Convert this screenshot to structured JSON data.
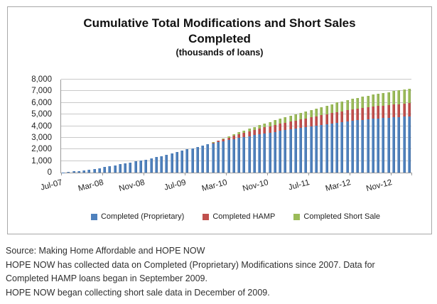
{
  "chart_data": {
    "type": "bar",
    "stacked": true,
    "title": "Cumulative Total Modifications and Short Sales Completed",
    "title_lines": [
      "Cumulative Total Modifications and Short Sales",
      "Completed"
    ],
    "subtitle": "(thousands of loans)",
    "ylim": [
      0,
      8000
    ],
    "ytick_interval": 1000,
    "ytick_labels": [
      "0",
      "1,000",
      "2,000",
      "3,000",
      "4,000",
      "5,000",
      "6,000",
      "7,000",
      "8,000"
    ],
    "xtick_interval": 8,
    "grid": true,
    "legend_position": "bottom",
    "x": [
      "Jul-07",
      "Aug-07",
      "Sep-07",
      "Oct-07",
      "Nov-07",
      "Dec-07",
      "Jan-08",
      "Feb-08",
      "Mar-08",
      "Apr-08",
      "May-08",
      "Jun-08",
      "Jul-08",
      "Aug-08",
      "Sep-08",
      "Oct-08",
      "Nov-08",
      "Dec-08",
      "Jan-09",
      "Feb-09",
      "Mar-09",
      "Apr-09",
      "May-09",
      "Jun-09",
      "Jul-09",
      "Aug-09",
      "Sep-09",
      "Oct-09",
      "Nov-09",
      "Dec-09",
      "Jan-10",
      "Feb-10",
      "Mar-10",
      "Apr-10",
      "May-10",
      "Jun-10",
      "Jul-10",
      "Aug-10",
      "Sep-10",
      "Oct-10",
      "Nov-10",
      "Dec-10",
      "Jan-11",
      "Feb-11",
      "Mar-11",
      "Apr-11",
      "May-11",
      "Jun-11",
      "Jul-11",
      "Aug-11",
      "Sep-11",
      "Oct-11",
      "Nov-11",
      "Dec-11",
      "Jan-12",
      "Feb-12",
      "Mar-12",
      "Apr-12",
      "May-12",
      "Jun-12",
      "Jul-12",
      "Aug-12",
      "Sep-12",
      "Oct-12",
      "Nov-12",
      "Dec-12",
      "Jan-13",
      "Feb-13"
    ],
    "series": [
      {
        "name": "Completed (Proprietary)",
        "color": "#4F81BD",
        "values": [
          25,
          55,
          95,
          140,
          190,
          245,
          315,
          390,
          465,
          545,
          625,
          705,
          790,
          875,
          955,
          1040,
          1125,
          1215,
          1320,
          1430,
          1540,
          1655,
          1770,
          1885,
          1995,
          2100,
          2205,
          2310,
          2415,
          2520,
          2610,
          2700,
          2790,
          2880,
          2965,
          3050,
          3130,
          3210,
          3290,
          3365,
          3440,
          3510,
          3580,
          3650,
          3720,
          3790,
          3855,
          3920,
          3985,
          4050,
          4115,
          4180,
          4240,
          4300,
          4350,
          4400,
          4450,
          4495,
          4540,
          4580,
          4620,
          4655,
          4690,
          4720,
          4750,
          4775,
          4800,
          4825
        ]
      },
      {
        "name": "Completed HAMP",
        "color": "#C0504D",
        "values": [
          0,
          0,
          0,
          0,
          0,
          0,
          0,
          0,
          0,
          0,
          0,
          0,
          0,
          0,
          0,
          0,
          0,
          0,
          0,
          0,
          0,
          0,
          0,
          0,
          0,
          0,
          5,
          10,
          30,
          65,
          115,
          170,
          230,
          295,
          345,
          390,
          435,
          470,
          495,
          520,
          550,
          580,
          610,
          635,
          665,
          690,
          715,
          740,
          765,
          790,
          815,
          840,
          865,
          910,
          930,
          950,
          970,
          990,
          1010,
          1025,
          1045,
          1060,
          1075,
          1090,
          1105,
          1115,
          1130,
          1140
        ]
      },
      {
        "name": "Completed Short Sale",
        "color": "#9BBB59",
        "values": [
          0,
          0,
          0,
          0,
          0,
          0,
          0,
          0,
          0,
          0,
          0,
          0,
          0,
          0,
          0,
          0,
          0,
          0,
          0,
          0,
          0,
          0,
          0,
          0,
          0,
          0,
          0,
          0,
          0,
          15,
          35,
          60,
          90,
          120,
          150,
          185,
          220,
          255,
          290,
          330,
          365,
          400,
          435,
          470,
          505,
          540,
          575,
          610,
          645,
          680,
          715,
          750,
          785,
          820,
          850,
          880,
          910,
          940,
          970,
          1000,
          1030,
          1060,
          1090,
          1120,
          1150,
          1180,
          1210,
          1240
        ]
      }
    ]
  },
  "colors": {
    "accent_blue": "#4F81BD",
    "accent_red": "#C0504D",
    "accent_green": "#9BBB59",
    "gridline": "#C9C9C9",
    "frame_border": "#A8A8A8",
    "axis": "#9A9A9A"
  },
  "footer": {
    "lines": [
      "Source: Making Home Affordable and HOPE NOW",
      "HOPE NOW has collected data on Completed (Proprietary) Modifications since 2007. Data for",
      "Completed HAMP loans began in September 2009.",
      "HOPE NOW began collecting short sale data in December of 2009."
    ]
  }
}
